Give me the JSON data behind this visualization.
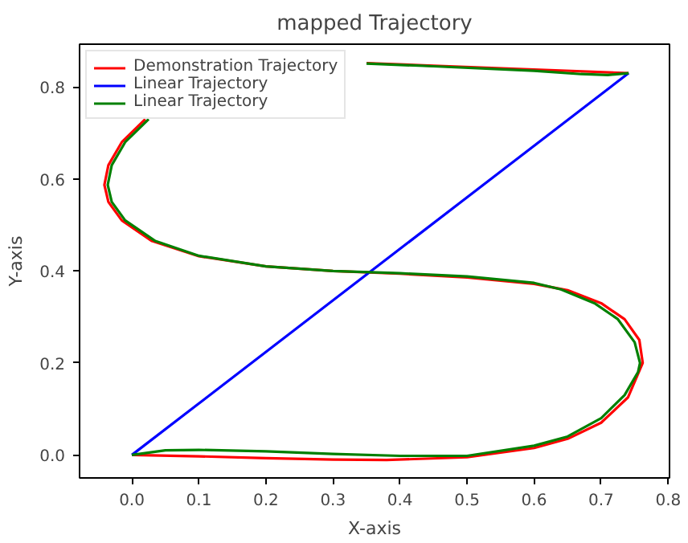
{
  "chart_data": {
    "type": "line",
    "title": "mapped Trajectory",
    "xlabel": "X-axis",
    "ylabel": "Y-axis",
    "xlim": [
      -0.078,
      0.802
    ],
    "ylim": [
      -0.05,
      0.893
    ],
    "xticks": [
      {
        "value": 0,
        "label": "0.0"
      },
      0.1,
      0.2,
      0.3,
      0.4,
      0.5,
      0.6,
      0.7,
      0.8
    ],
    "yticks": [
      {
        "value": 0,
        "label": "0.0"
      },
      0.2,
      0.4,
      0.6,
      0.8
    ],
    "legend": "top left",
    "series": [
      {
        "name": "Demonstration Trajectory",
        "color": "#ff0000",
        "x": [
          0,
          0.1,
          0.2,
          0.3,
          0.38,
          0.5,
          0.6,
          0.65,
          0.7,
          0.74,
          0.762,
          0.757,
          0.735,
          0.7,
          0.65,
          0.6,
          0.5,
          0.4,
          0.3,
          0.2,
          0.1,
          0.03,
          -0.015,
          -0.035,
          -0.041,
          -0.035,
          -0.015,
          0.02,
          0.07,
          0.12,
          0.2,
          0.3,
          0.35,
          0.45,
          0.6,
          0.741
        ],
        "values": [
          0,
          -0.003,
          -0.007,
          -0.01,
          -0.011,
          -0.005,
          0.015,
          0.035,
          0.07,
          0.125,
          0.2,
          0.25,
          0.295,
          0.33,
          0.358,
          0.372,
          0.386,
          0.394,
          0.4,
          0.41,
          0.432,
          0.465,
          0.51,
          0.55,
          0.587,
          0.63,
          0.68,
          0.73,
          null,
          null,
          null,
          null,
          0.852,
          0.846,
          0.838,
          0.83
        ]
      },
      {
        "name": "Linear Trajectory",
        "color": "#0000ff",
        "x": [
          0,
          0.741
        ],
        "values": [
          0,
          0.83
        ]
      },
      {
        "name": "Linear Trajectory",
        "color": "#008000",
        "x": [
          0,
          0.05,
          0.1,
          0.2,
          0.3,
          0.4,
          0.5,
          0.6,
          0.65,
          0.7,
          0.735,
          0.755,
          0.758,
          0.75,
          0.725,
          0.69,
          0.64,
          0.6,
          0.5,
          0.4,
          0.3,
          0.2,
          0.1,
          0.035,
          -0.01,
          -0.03,
          -0.036,
          -0.03,
          -0.01,
          0.025,
          0.075,
          0.125,
          0.2,
          0.35,
          0.45,
          0.6,
          0.67,
          0.71,
          0.741
        ],
        "values": [
          0,
          0.01,
          0.011,
          0.008,
          0.002,
          -0.002,
          -0.002,
          0.02,
          0.04,
          0.08,
          0.13,
          0.18,
          0.2,
          0.245,
          0.295,
          0.33,
          0.36,
          0.374,
          0.388,
          0.395,
          0.4,
          0.41,
          0.433,
          0.465,
          0.51,
          0.55,
          0.587,
          0.63,
          0.68,
          0.73,
          null,
          null,
          null,
          0.851,
          0.845,
          0.835,
          0.828,
          0.826,
          0.83
        ]
      }
    ]
  }
}
